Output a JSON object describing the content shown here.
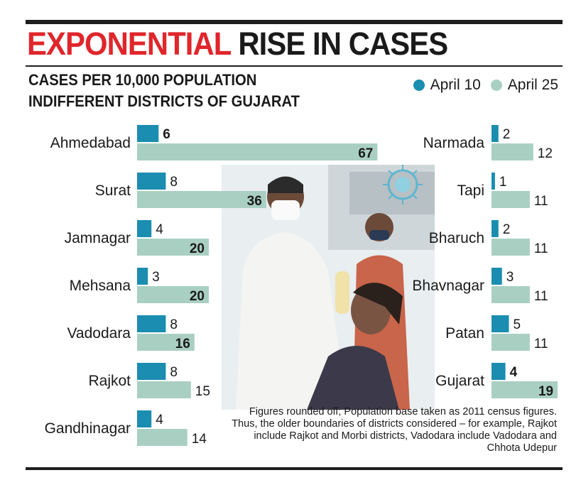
{
  "headline": {
    "red": "EXPONENTIAL",
    "dark": "RISE IN CASES"
  },
  "subtitle": {
    "line1": "CASES PER 10,000 POPULATION",
    "line2": "INDIFFERENT DISTRICTS OF GUJARAT"
  },
  "legend": [
    {
      "label": "April 10",
      "color": "#1a8db0"
    },
    {
      "label": "April 25",
      "color": "#a9cfc3"
    }
  ],
  "footnote": "Figures rounded off; Population base taken as 2011 census figures. Thus, the older boundaries of districts considered – for example, Rajkot include Rajkot and Morbi districts, Vadodara include Vadodara and Chhota Udepur",
  "chart_data": {
    "type": "bar",
    "orientation": "horizontal",
    "series_names": [
      "April 10",
      "April 25"
    ],
    "colors": {
      "april10": "#1a8db0",
      "april25": "#a9cfc3"
    },
    "left_panel": {
      "categories": [
        "Ahmedabad",
        "Surat",
        "Jamnagar",
        "Mehsana",
        "Vadodara",
        "Rajkot",
        "Gandhinagar"
      ],
      "april10": [
        6,
        8,
        4,
        3,
        8,
        8,
        4
      ],
      "april25": [
        67,
        36,
        20,
        20,
        16,
        15,
        14
      ]
    },
    "right_panel": {
      "categories": [
        "Narmada",
        "Tapi",
        "Bharuch",
        "Bhavnagar",
        "Patan",
        "Gujarat"
      ],
      "april10": [
        2,
        1,
        2,
        3,
        5,
        4
      ],
      "april25": [
        12,
        11,
        11,
        11,
        11,
        19
      ]
    }
  }
}
